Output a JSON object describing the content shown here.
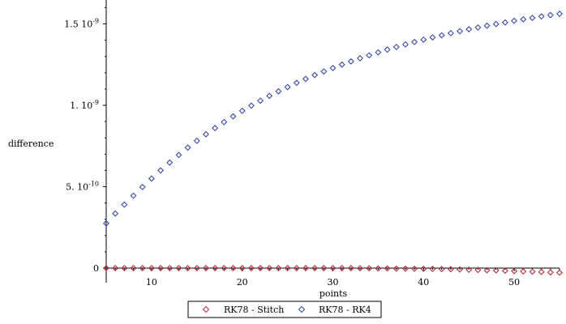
{
  "chart_data": {
    "type": "scatter",
    "title": "",
    "xlabel": "points",
    "ylabel": "difference",
    "xlim": [
      5,
      55
    ],
    "ylim": [
      -1e-10,
      1.6e-09
    ],
    "grid": false,
    "legend_position": "bottom",
    "x_ticks": [
      {
        "value": 10,
        "label": "10"
      },
      {
        "value": 20,
        "label": "20"
      },
      {
        "value": 30,
        "label": "30"
      },
      {
        "value": 40,
        "label": "40"
      },
      {
        "value": 50,
        "label": "50"
      }
    ],
    "y_ticks": [
      {
        "value": 0,
        "mantissa": "0",
        "exp": ""
      },
      {
        "value": 5e-10,
        "mantissa": "5. 10",
        "exp": "-10"
      },
      {
        "value": 1e-09,
        "mantissa": "1. 10",
        "exp": "-9"
      },
      {
        "value": 1.5e-09,
        "mantissa": "1.5 10",
        "exp": "-9"
      }
    ],
    "x": [
      5,
      6,
      7,
      8,
      9,
      10,
      11,
      12,
      13,
      14,
      15,
      16,
      17,
      18,
      19,
      20,
      21,
      22,
      23,
      24,
      25,
      26,
      27,
      28,
      29,
      30,
      31,
      32,
      33,
      34,
      35,
      36,
      37,
      38,
      39,
      40,
      41,
      42,
      43,
      44,
      45,
      46,
      47,
      48,
      49,
      50,
      51,
      52,
      53,
      54,
      55
    ],
    "series": [
      {
        "name": "RK78 - Stitch",
        "color": "#b03040",
        "marker": "diamond",
        "values": [
          0.0,
          0.0,
          0.0,
          0.0,
          0.0,
          0.0,
          0.0,
          0.0,
          0.0,
          0.0,
          0.0,
          0.0,
          0.0,
          0.0,
          0.0,
          0.0,
          0.0,
          0.0,
          0.0,
          0.0,
          0.0,
          0.0,
          0.0,
          0.0,
          0.0,
          0.0,
          0.0,
          0.0,
          -1e-12,
          -1e-12,
          -2e-12,
          -2e-12,
          -3e-12,
          -3e-12,
          -4e-12,
          -4e-12,
          -5e-12,
          -6e-12,
          -7e-12,
          -8e-12,
          -1e-11,
          -1.1e-11,
          -1.3e-11,
          -1.4e-11,
          -1.6e-11,
          -1.8e-11,
          -2e-11,
          -2.2e-11,
          -2.4e-11,
          -2.6e-11,
          -2.8e-11
        ]
      },
      {
        "name": "RK78 - RK4",
        "color": "#3a4aa8",
        "marker": "diamond",
        "values": [
          2.75e-10,
          3.35e-10,
          3.9e-10,
          4.45e-10,
          4.98e-10,
          5.5e-10,
          6e-10,
          6.48e-10,
          6.95e-10,
          7.4e-10,
          7.82e-10,
          8.22e-10,
          8.6e-10,
          8.97e-10,
          9.32e-10,
          9.66e-10,
          9.98e-10,
          1.028e-09,
          1.058e-09,
          1.086e-09,
          1.112e-09,
          1.138e-09,
          1.162e-09,
          1.186e-09,
          1.208e-09,
          1.229e-09,
          1.25e-09,
          1.27e-09,
          1.289e-09,
          1.307e-09,
          1.325e-09,
          1.342e-09,
          1.358e-09,
          1.374e-09,
          1.389e-09,
          1.403e-09,
          1.417e-09,
          1.43e-09,
          1.443e-09,
          1.455e-09,
          1.467e-09,
          1.478e-09,
          1.489e-09,
          1.499e-09,
          1.509e-09,
          1.519e-09,
          1.528e-09,
          1.537e-09,
          1.546e-09,
          1.554e-09,
          1.562e-09
        ]
      }
    ]
  }
}
